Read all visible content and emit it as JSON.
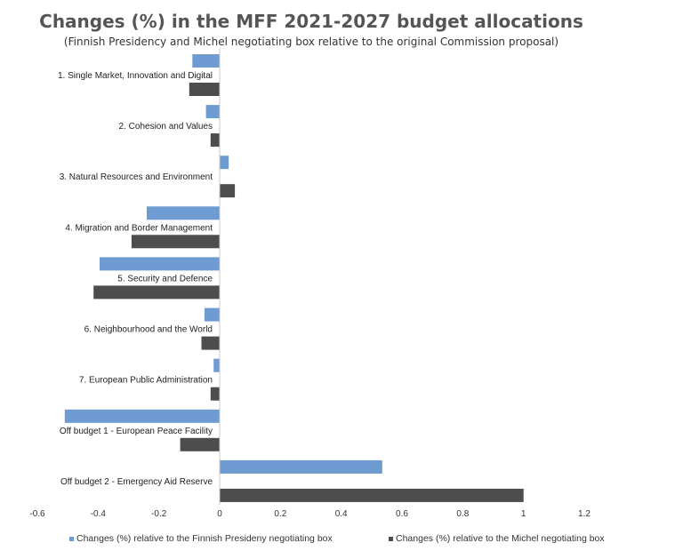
{
  "chart_data": {
    "type": "bar",
    "orientation": "horizontal",
    "title": "Changes (%) in the MFF 2021-2027 budget allocations",
    "subtitle": "(Finnish Presidency and Michel negotiating box relative to the original Commission proposal)",
    "categories": [
      "1. Single Market, Innovation and Digital",
      "2. Cohesion and Values",
      "3. Natural Resources and Environment",
      "4. Migration and Border Management",
      "5. Security and Defence",
      "6. Neighbourhood and the World",
      "7. European Public Administration",
      "Off budget 1 -  European Peace Facility",
      "Off budget 2 -  Emergency Aid Reserve"
    ],
    "series": [
      {
        "name": "Changes (%) relative to the Finnish Presideny negotiating box",
        "color": "#6f9bd3",
        "values": [
          -0.09,
          -0.045,
          0.03,
          -0.24,
          -0.395,
          -0.05,
          -0.02,
          -0.51,
          0.535
        ]
      },
      {
        "name": "Changes (%) relative to the Michel negotiating box",
        "color": "#4d4d4d",
        "values": [
          -0.1,
          -0.03,
          0.05,
          -0.29,
          -0.415,
          -0.06,
          -0.03,
          -0.13,
          1.0
        ]
      }
    ],
    "xlim": [
      -0.6,
      1.2
    ],
    "xticks": [
      "-0.6",
      "-0.4",
      "-0.2",
      "0",
      "0.2",
      "0.4",
      "0.6",
      "0.8",
      "1",
      "1.2"
    ],
    "grid": false,
    "legend_position": "bottom"
  }
}
